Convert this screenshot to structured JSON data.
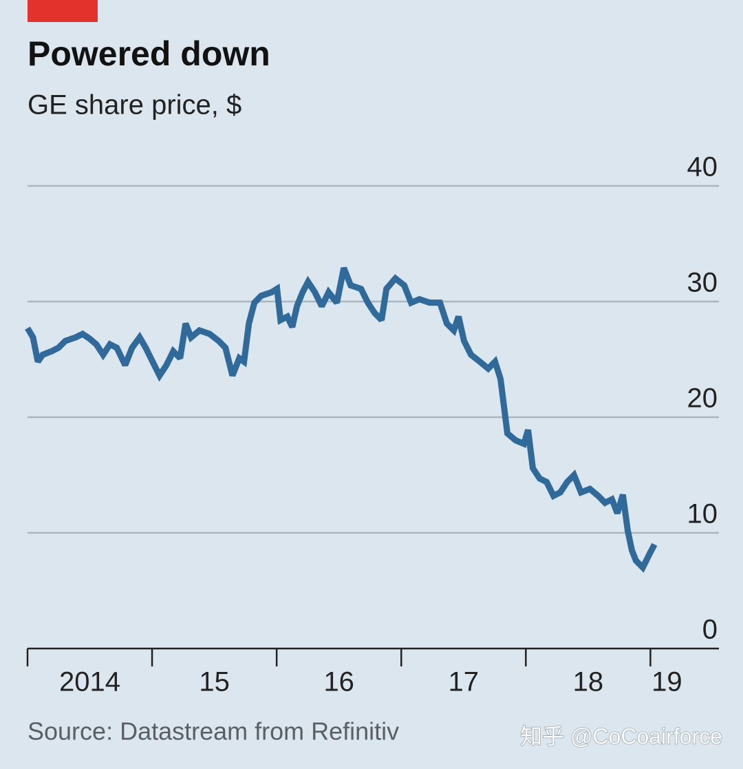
{
  "chart_data": {
    "type": "line",
    "title": "Powered down",
    "subtitle": "GE share price, $",
    "source": "Source: Datastream from Refinitiv",
    "watermark": "知乎 @CoCoairforce",
    "xlim": [
      2014,
      2019.55
    ],
    "xticks": [
      {
        "value": 2014,
        "label": "2014"
      },
      {
        "value": 2015,
        "label": "15"
      },
      {
        "value": 2016,
        "label": "16"
      },
      {
        "value": 2017,
        "label": "17"
      },
      {
        "value": 2018,
        "label": "18"
      },
      {
        "value": 2019,
        "label": "19"
      }
    ],
    "ylim": [
      0,
      40
    ],
    "yticks": [
      0,
      10,
      20,
      30,
      40
    ],
    "grid": true,
    "x": [
      2014.0,
      2014.044,
      2014.083,
      2014.121,
      2014.193,
      2014.248,
      2014.304,
      2014.386,
      2014.442,
      2014.497,
      2014.552,
      2014.607,
      2014.662,
      2014.717,
      2014.784,
      2014.839,
      2014.9,
      2014.949,
      2015.004,
      2015.06,
      2015.115,
      2015.17,
      2015.225,
      2015.269,
      2015.313,
      2015.38,
      2015.462,
      2015.534,
      2015.589,
      2015.645,
      2015.7,
      2015.738,
      2015.777,
      2015.821,
      2015.876,
      2015.959,
      2016.003,
      2016.031,
      2016.086,
      2016.125,
      2016.163,
      2016.208,
      2016.252,
      2016.307,
      2016.362,
      2016.417,
      2016.483,
      2016.539,
      2016.594,
      2016.677,
      2016.732,
      2016.787,
      2016.842,
      2016.881,
      2016.953,
      2017.024,
      2017.079,
      2017.146,
      2017.228,
      2017.311,
      2017.366,
      2017.422,
      2017.46,
      2017.504,
      2017.56,
      2017.631,
      2017.698,
      2017.753,
      2017.797,
      2017.852,
      2017.918,
      2017.985,
      2018.018,
      2018.056,
      2018.111,
      2018.167,
      2018.222,
      2018.277,
      2018.332,
      2018.387,
      2018.443,
      2018.514,
      2018.581,
      2018.636,
      2018.691,
      2018.735,
      2018.779,
      2018.818,
      2018.851,
      2018.884,
      2018.939,
      2018.994,
      2019.033
    ],
    "series": [
      {
        "name": "GE",
        "color": "#2f6a9b",
        "values": [
          27.7,
          26.9,
          24.8,
          25.4,
          25.7,
          26.0,
          26.6,
          26.9,
          27.2,
          26.8,
          26.3,
          25.4,
          26.3,
          26.0,
          24.5,
          26.0,
          26.9,
          26.0,
          24.8,
          23.6,
          24.5,
          25.7,
          25.1,
          28.1,
          26.9,
          27.5,
          27.2,
          26.6,
          26.0,
          23.6,
          25.1,
          24.8,
          28.1,
          29.9,
          30.5,
          30.8,
          31.1,
          28.4,
          28.7,
          27.8,
          29.6,
          30.8,
          31.7,
          30.8,
          29.6,
          30.8,
          29.9,
          32.9,
          31.4,
          31.1,
          29.9,
          29.0,
          28.4,
          31.1,
          32.0,
          31.4,
          29.9,
          30.2,
          29.9,
          29.9,
          28.1,
          27.5,
          28.7,
          26.6,
          25.4,
          24.8,
          24.2,
          24.8,
          23.3,
          18.6,
          18.0,
          17.7,
          18.9,
          15.6,
          14.7,
          14.4,
          13.2,
          13.5,
          14.4,
          15.0,
          13.5,
          13.8,
          13.2,
          12.6,
          12.9,
          11.7,
          13.3,
          10.2,
          8.5,
          7.6,
          7.0,
          8.2,
          9.0
        ]
      }
    ]
  }
}
